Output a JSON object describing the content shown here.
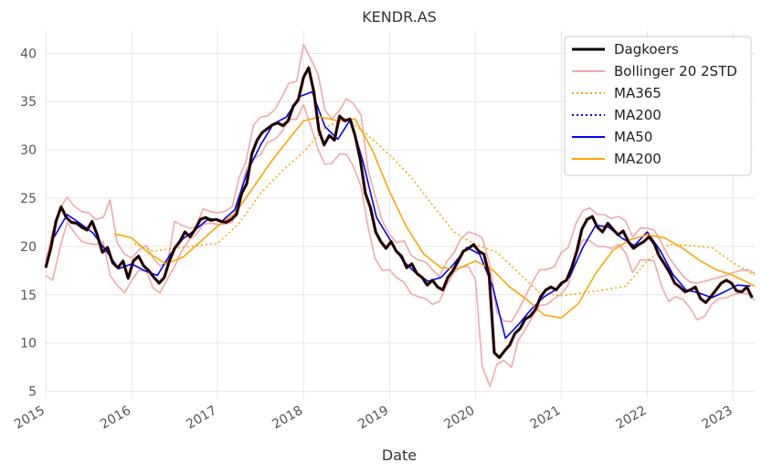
{
  "chart_data": {
    "type": "line",
    "title": "KENDR.AS",
    "xlabel": "Date",
    "ylabel": "",
    "xlim": [
      2015.0,
      2023.25
    ],
    "ylim": [
      4.3,
      42.3
    ],
    "x_ticks": [
      {
        "value": 2015,
        "label": "2015"
      },
      {
        "value": 2016,
        "label": "2016"
      },
      {
        "value": 2017,
        "label": "2017"
      },
      {
        "value": 2018,
        "label": "2018"
      },
      {
        "value": 2019,
        "label": "2019"
      },
      {
        "value": 2020,
        "label": "2020"
      },
      {
        "value": 2021,
        "label": "2021"
      },
      {
        "value": 2022,
        "label": "2022"
      },
      {
        "value": 2023,
        "label": "2023"
      }
    ],
    "y_ticks": [
      {
        "value": 5,
        "label": "5"
      },
      {
        "value": 10,
        "label": "10"
      },
      {
        "value": 15,
        "label": "15"
      },
      {
        "value": 20,
        "label": "20"
      },
      {
        "value": 25,
        "label": "25"
      },
      {
        "value": 30,
        "label": "30"
      },
      {
        "value": 35,
        "label": "35"
      },
      {
        "value": 40,
        "label": "40"
      }
    ],
    "grid": true,
    "legend_position": "top-right",
    "series": [
      {
        "name": "Bollinger 20 2STD",
        "color": "#f4a8a8",
        "style": "solid",
        "band": true,
        "x": [
          2015.0,
          2015.08,
          2015.17,
          2015.25,
          2015.33,
          2015.42,
          2015.5,
          2015.58,
          2015.67,
          2015.75,
          2015.83,
          2015.92,
          2016.0,
          2016.08,
          2016.17,
          2016.25,
          2016.33,
          2016.42,
          2016.5,
          2016.58,
          2016.67,
          2016.75,
          2016.83,
          2016.92,
          2017.0,
          2017.08,
          2017.17,
          2017.25,
          2017.33,
          2017.42,
          2017.5,
          2017.58,
          2017.67,
          2017.75,
          2017.83,
          2017.92,
          2018.0,
          2018.08,
          2018.17,
          2018.25,
          2018.33,
          2018.42,
          2018.5,
          2018.58,
          2018.67,
          2018.75,
          2018.83,
          2018.92,
          2019.0,
          2019.08,
          2019.17,
          2019.25,
          2019.33,
          2019.42,
          2019.5,
          2019.58,
          2019.67,
          2019.75,
          2019.83,
          2019.92,
          2020.0,
          2020.08,
          2020.17,
          2020.25,
          2020.33,
          2020.42,
          2020.5,
          2020.58,
          2020.67,
          2020.75,
          2020.83,
          2020.92,
          2021.0,
          2021.08,
          2021.17,
          2021.25,
          2021.33,
          2021.42,
          2021.5,
          2021.58,
          2021.67,
          2021.75,
          2021.83,
          2021.92,
          2022.0,
          2022.08,
          2022.17,
          2022.25,
          2022.33,
          2022.42,
          2022.5,
          2022.58,
          2022.67,
          2022.75,
          2022.83,
          2022.92,
          2023.0,
          2023.08,
          2023.17,
          2023.25
        ],
        "upper": [
          18.5,
          21.5,
          24.0,
          25.1,
          24.2,
          23.6,
          23.5,
          22.8,
          23.0,
          24.8,
          20.4,
          19.2,
          18.8,
          19.6,
          20.1,
          18.8,
          18.0,
          18.4,
          22.6,
          22.2,
          21.9,
          22.0,
          23.9,
          23.6,
          23.5,
          23.6,
          24.1,
          27.1,
          28.8,
          32.6,
          33.4,
          33.5,
          34.2,
          35.5,
          36.9,
          37.1,
          40.9,
          39.5,
          37.8,
          34.1,
          33.2,
          34.1,
          35.3,
          34.8,
          33.6,
          28.0,
          25.3,
          22.6,
          21.3,
          20.4,
          20.6,
          19.1,
          18.6,
          18.4,
          17.6,
          16.9,
          18.5,
          19.3,
          20.8,
          21.5,
          21.3,
          20.9,
          18.0,
          13.2,
          12.3,
          12.2,
          13.4,
          14.8,
          16.4,
          17.6,
          17.6,
          17.9,
          19.4,
          19.9,
          22.4,
          23.7,
          24.0,
          23.3,
          23.3,
          22.9,
          23.1,
          22.6,
          21.0,
          21.9,
          21.9,
          21.7,
          20.3,
          18.9,
          17.9,
          16.9,
          16.3,
          16.2,
          16.4,
          16.6,
          16.8,
          17.0,
          17.3,
          17.5,
          17.6,
          17.2
        ],
        "lower": [
          17.0,
          16.5,
          20.0,
          22.5,
          21.5,
          20.5,
          20.3,
          20.2,
          20.5,
          17.0,
          16.0,
          15.2,
          16.5,
          17.5,
          17.5,
          15.7,
          15.2,
          16.7,
          17.9,
          19.5,
          20.7,
          21.2,
          22.3,
          22.4,
          22.3,
          22.3,
          22.5,
          25.0,
          27.9,
          29.1,
          29.5,
          30.8,
          31.1,
          31.9,
          33.1,
          33.2,
          34.7,
          32.6,
          30.0,
          28.5,
          28.6,
          29.6,
          29.5,
          28.3,
          26.2,
          22.1,
          18.8,
          17.5,
          17.6,
          16.8,
          16.3,
          15.1,
          14.8,
          14.6,
          14.0,
          14.3,
          16.1,
          17.3,
          17.9,
          17.9,
          16.6,
          7.6,
          5.5,
          7.8,
          8.2,
          7.5,
          10.3,
          11.4,
          12.8,
          13.9,
          14.0,
          14.6,
          15.1,
          16.0,
          19.1,
          20.7,
          20.6,
          20.0,
          20.0,
          19.8,
          20.2,
          19.3,
          17.3,
          18.6,
          18.6,
          18.5,
          15.8,
          14.3,
          14.8,
          14.5,
          13.6,
          12.4,
          12.8,
          14.0,
          14.6,
          14.7,
          15.0,
          15.2,
          15.1,
          14.4
        ]
      },
      {
        "name": "MA365",
        "color": "#ffa500",
        "style": "dotted",
        "x": [
          2016.03,
          2016.25,
          2016.5,
          2016.75,
          2017.0,
          2017.25,
          2017.5,
          2017.75,
          2018.0,
          2018.25,
          2018.5,
          2018.75,
          2019.0,
          2019.25,
          2019.5,
          2019.75,
          2020.0,
          2020.25,
          2020.5,
          2020.75,
          2021.0,
          2021.25,
          2021.5,
          2021.75,
          2022.0,
          2022.25,
          2022.5,
          2022.75,
          2023.0,
          2023.25
        ],
        "y": [
          20.3,
          19.5,
          19.8,
          20.1,
          20.3,
          22.4,
          25.5,
          27.8,
          29.8,
          32.3,
          33.3,
          31.5,
          29.5,
          27.2,
          24.3,
          21.5,
          20.2,
          19.4,
          17.3,
          15.2,
          14.9,
          15.2,
          15.5,
          15.9,
          18.5,
          20.2,
          20.1,
          19.9,
          18.3,
          17.0
        ]
      },
      {
        "name": "MA200",
        "color": "#0000ff",
        "style": "dotted",
        "legend_only": true,
        "x": [],
        "y": []
      },
      {
        "name": "MA50",
        "color": "#0000ff",
        "style": "solid",
        "x": [
          2015.1,
          2015.25,
          2015.4,
          2015.55,
          2015.7,
          2015.85,
          2016.0,
          2016.15,
          2016.3,
          2016.45,
          2016.6,
          2016.75,
          2016.9,
          2017.05,
          2017.2,
          2017.35,
          2017.5,
          2017.65,
          2017.8,
          2017.95,
          2018.1,
          2018.25,
          2018.4,
          2018.55,
          2018.7,
          2018.85,
          2019.0,
          2019.15,
          2019.3,
          2019.45,
          2019.6,
          2019.75,
          2019.9,
          2020.05,
          2020.2,
          2020.35,
          2020.5,
          2020.65,
          2020.8,
          2020.95,
          2021.1,
          2021.25,
          2021.4,
          2021.55,
          2021.7,
          2021.85,
          2022.0,
          2022.15,
          2022.3,
          2022.45,
          2022.6,
          2022.75,
          2022.9,
          2023.05,
          2023.2
        ],
        "y": [
          21.0,
          23.3,
          22.4,
          21.4,
          19.6,
          17.7,
          18.2,
          17.5,
          17.0,
          19.2,
          20.8,
          21.8,
          22.9,
          22.6,
          23.8,
          27.8,
          30.5,
          32.7,
          33.4,
          35.5,
          36.0,
          32.4,
          31.1,
          33.2,
          28.5,
          23.0,
          20.8,
          18.6,
          17.3,
          16.4,
          16.8,
          18.2,
          19.9,
          19.2,
          15.9,
          10.5,
          11.9,
          13.5,
          14.8,
          15.6,
          16.9,
          19.9,
          22.2,
          22.0,
          20.9,
          20.1,
          21.5,
          19.6,
          17.1,
          15.5,
          15.2,
          14.7,
          15.3,
          16.0,
          15.9
        ]
      },
      {
        "name": "MA200",
        "color": "#ffa500",
        "style": "solid",
        "x": [
          2015.8,
          2016.0,
          2016.2,
          2016.4,
          2016.6,
          2016.8,
          2017.0,
          2017.2,
          2017.4,
          2017.6,
          2017.8,
          2018.0,
          2018.2,
          2018.4,
          2018.6,
          2018.8,
          2019.0,
          2019.2,
          2019.4,
          2019.6,
          2019.8,
          2020.0,
          2020.2,
          2020.4,
          2020.6,
          2020.8,
          2021.0,
          2021.2,
          2021.4,
          2021.6,
          2021.8,
          2022.0,
          2022.2,
          2022.4,
          2022.6,
          2022.8,
          2023.0,
          2023.25
        ],
        "y": [
          21.3,
          20.9,
          19.3,
          18.2,
          18.9,
          20.5,
          22.1,
          23.4,
          25.9,
          28.5,
          30.8,
          33.0,
          33.4,
          33.0,
          33.2,
          30.0,
          25.7,
          22.0,
          19.2,
          17.8,
          17.7,
          18.5,
          17.6,
          15.8,
          14.5,
          12.9,
          12.6,
          14.1,
          17.2,
          19.6,
          20.7,
          21.2,
          20.9,
          19.9,
          18.6,
          17.6,
          17.0,
          15.9
        ]
      },
      {
        "name": "Dagkoers",
        "color": "#000000",
        "color_secondary": "#5a0000",
        "style": "solid",
        "x": [
          2015.0,
          2015.06,
          2015.12,
          2015.18,
          2015.24,
          2015.3,
          2015.36,
          2015.42,
          2015.48,
          2015.54,
          2015.6,
          2015.66,
          2015.72,
          2015.78,
          2015.84,
          2015.9,
          2015.96,
          2016.02,
          2016.08,
          2016.14,
          2016.2,
          2016.26,
          2016.32,
          2016.38,
          2016.44,
          2016.5,
          2016.56,
          2016.62,
          2016.68,
          2016.74,
          2016.8,
          2016.86,
          2016.92,
          2016.98,
          2017.04,
          2017.1,
          2017.16,
          2017.22,
          2017.28,
          2017.34,
          2017.4,
          2017.46,
          2017.52,
          2017.58,
          2017.64,
          2017.7,
          2017.76,
          2017.82,
          2017.88,
          2017.94,
          2018.0,
          2018.06,
          2018.12,
          2018.18,
          2018.24,
          2018.3,
          2018.36,
          2018.42,
          2018.48,
          2018.54,
          2018.6,
          2018.66,
          2018.72,
          2018.78,
          2018.84,
          2018.9,
          2018.96,
          2019.02,
          2019.08,
          2019.14,
          2019.2,
          2019.26,
          2019.32,
          2019.38,
          2019.44,
          2019.5,
          2019.56,
          2019.62,
          2019.68,
          2019.74,
          2019.8,
          2019.86,
          2019.92,
          2019.98,
          2020.04,
          2020.1,
          2020.16,
          2020.22,
          2020.28,
          2020.34,
          2020.4,
          2020.46,
          2020.52,
          2020.58,
          2020.64,
          2020.7,
          2020.76,
          2020.82,
          2020.88,
          2020.94,
          2021.0,
          2021.06,
          2021.12,
          2021.18,
          2021.24,
          2021.3,
          2021.36,
          2021.42,
          2021.48,
          2021.54,
          2021.6,
          2021.66,
          2021.72,
          2021.78,
          2021.84,
          2021.9,
          2021.96,
          2022.02,
          2022.08,
          2022.14,
          2022.2,
          2022.26,
          2022.32,
          2022.38,
          2022.44,
          2022.5,
          2022.56,
          2022.62,
          2022.68,
          2022.74,
          2022.8,
          2022.86,
          2022.92,
          2022.98,
          2023.04,
          2023.1,
          2023.16,
          2023.22
        ],
        "y": [
          17.8,
          19.8,
          22.6,
          24.1,
          23.0,
          22.5,
          22.4,
          22.0,
          21.7,
          22.6,
          21.2,
          19.4,
          19.9,
          18.3,
          17.8,
          18.5,
          16.7,
          18.5,
          19.0,
          18.0,
          17.5,
          16.8,
          16.2,
          16.8,
          18.5,
          19.8,
          20.5,
          21.5,
          21.0,
          21.8,
          22.8,
          23.0,
          22.7,
          22.8,
          22.6,
          22.5,
          22.8,
          23.3,
          25.5,
          26.5,
          29.6,
          31.0,
          31.8,
          32.2,
          32.6,
          32.8,
          32.5,
          33.0,
          34.5,
          35.2,
          37.5,
          38.5,
          36.0,
          32.0,
          30.5,
          31.5,
          31.0,
          33.5,
          33.0,
          33.2,
          31.5,
          29.0,
          25.5,
          24.0,
          21.5,
          20.5,
          19.8,
          20.5,
          19.5,
          19.0,
          17.8,
          18.2,
          17.2,
          16.8,
          16.0,
          16.5,
          15.8,
          15.5,
          16.8,
          17.5,
          18.5,
          19.5,
          19.8,
          20.2,
          19.5,
          19.2,
          17.0,
          9.0,
          8.5,
          9.2,
          9.8,
          11.0,
          11.5,
          12.5,
          12.8,
          13.5,
          14.8,
          15.5,
          15.8,
          15.5,
          16.2,
          16.5,
          17.8,
          19.5,
          21.8,
          22.8,
          23.1,
          22.0,
          21.5,
          22.4,
          21.8,
          21.2,
          21.6,
          20.5,
          19.8,
          20.2,
          20.5,
          21.0,
          20.3,
          19.0,
          18.2,
          17.3,
          16.2,
          15.8,
          15.3,
          15.5,
          15.8,
          14.6,
          14.2,
          14.8,
          15.5,
          16.2,
          16.5,
          16.2,
          15.4,
          15.3,
          15.8,
          14.7
        ]
      }
    ],
    "legend": [
      {
        "name": "Dagkoers",
        "color": "#000000",
        "style": "solid",
        "width": 3
      },
      {
        "name": "Bollinger 20 2STD",
        "color": "#f4a8a8",
        "style": "solid",
        "width": 2
      },
      {
        "name": "MA365",
        "color": "#ffa500",
        "style": "dotted",
        "width": 2
      },
      {
        "name": "MA200",
        "color": "#0000ff",
        "style": "dotted",
        "width": 2
      },
      {
        "name": "MA50",
        "color": "#0000ff",
        "style": "solid",
        "width": 2
      },
      {
        "name": "MA200",
        "color": "#ffa500",
        "style": "solid",
        "width": 2
      }
    ]
  }
}
